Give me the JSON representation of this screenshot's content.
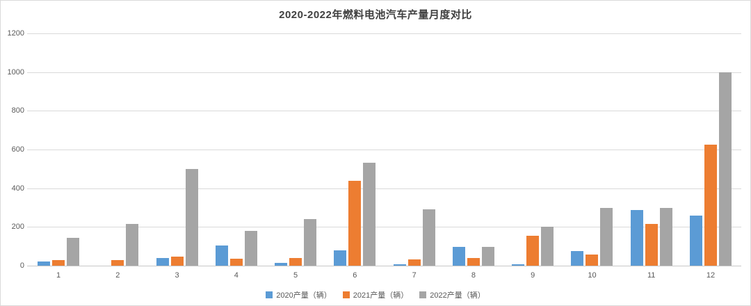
{
  "chart_data": {
    "type": "bar",
    "title": "2020-2022年燃料电池汽车产量月度对比",
    "xlabel": "",
    "ylabel": "",
    "categories": [
      "1",
      "2",
      "3",
      "4",
      "5",
      "6",
      "7",
      "8",
      "9",
      "10",
      "11",
      "12"
    ],
    "series": [
      {
        "name": "2020产量（辆）",
        "color": "#5B9BD5",
        "values": [
          20,
          0,
          40,
          105,
          15,
          80,
          8,
          97,
          8,
          75,
          288,
          260
        ]
      },
      {
        "name": "2021产量（辆）",
        "color": "#ED7D31",
        "values": [
          30,
          28,
          45,
          35,
          38,
          440,
          32,
          40,
          155,
          58,
          215,
          625
        ]
      },
      {
        "name": "2022产量（辆）",
        "color": "#A5A5A5",
        "values": [
          145,
          215,
          500,
          180,
          242,
          530,
          292,
          98,
          200,
          300,
          300,
          1000
        ]
      }
    ],
    "ylim": [
      0,
      1200
    ],
    "yticks": [
      0,
      200,
      400,
      600,
      800,
      1000,
      1200
    ],
    "grid": true,
    "legend_position": "bottom"
  },
  "colors": {
    "series_2020": "#5B9BD5",
    "series_2021": "#ED7D31",
    "series_2022": "#A5A5A5",
    "gridline": "#d9d9d9",
    "axis_text": "#595959",
    "title_text": "#404040",
    "frame_border": "#d9d9d9",
    "background": "#ffffff"
  }
}
